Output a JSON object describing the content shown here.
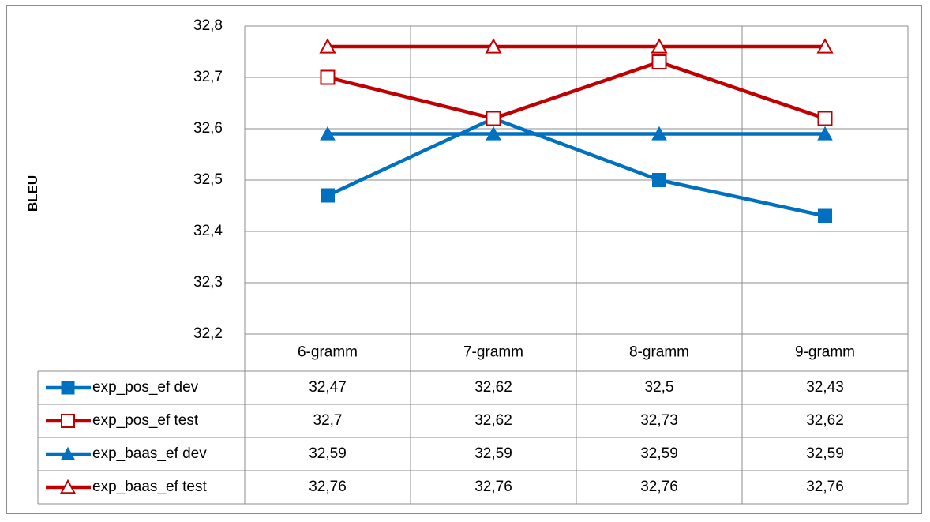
{
  "chart_data": {
    "type": "line",
    "ylabel": "BLEU",
    "categories": [
      "6-gramm",
      "7-gramm",
      "8-gramm",
      "9-gramm"
    ],
    "ylim": [
      32.2,
      32.8
    ],
    "yticks": [
      "32,2",
      "32,3",
      "32,4",
      "32,5",
      "32,6",
      "32,7",
      "32,8"
    ],
    "grid": true,
    "legend": "data-table",
    "series": [
      {
        "name": "exp_pos_ef dev",
        "values": [
          32.47,
          32.62,
          32.5,
          32.43
        ],
        "labels": [
          "32,47",
          "32,62",
          "32,5",
          "32,43"
        ],
        "color": "#0070C0",
        "marker": "square-filled"
      },
      {
        "name": "exp_pos_ef test",
        "values": [
          32.7,
          32.62,
          32.73,
          32.62
        ],
        "labels": [
          "32,7",
          "32,62",
          "32,73",
          "32,62"
        ],
        "color": "#C00000",
        "marker": "square-open"
      },
      {
        "name": "exp_baas_ef dev",
        "values": [
          32.59,
          32.59,
          32.59,
          32.59
        ],
        "labels": [
          "32,59",
          "32,59",
          "32,59",
          "32,59"
        ],
        "color": "#0070C0",
        "marker": "triangle-filled"
      },
      {
        "name": "exp_baas_ef test",
        "values": [
          32.76,
          32.76,
          32.76,
          32.76
        ],
        "labels": [
          "32,76",
          "32,76",
          "32,76",
          "32,76"
        ],
        "color": "#C00000",
        "marker": "triangle-open"
      }
    ]
  }
}
